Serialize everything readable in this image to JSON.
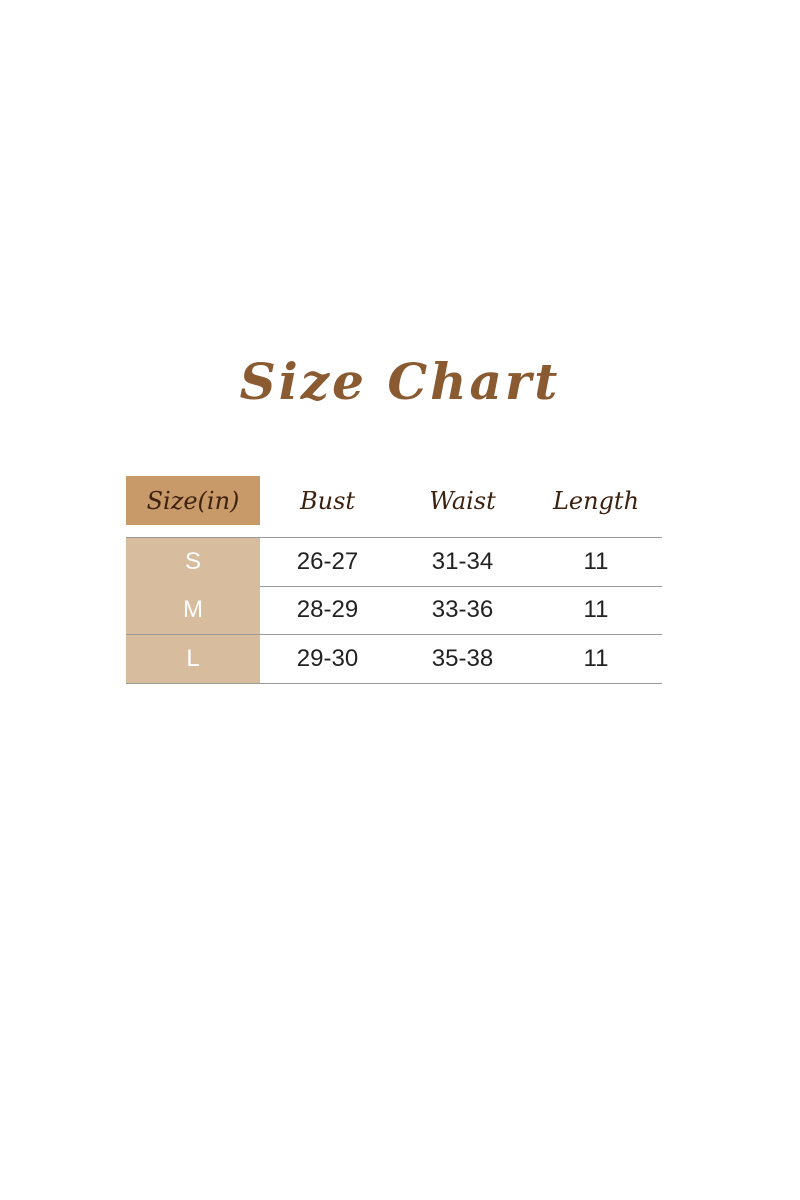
{
  "title": "Size Chart",
  "colors": {
    "title": "#8a5a30",
    "header_size_bg": "#c89a6a",
    "size_cell_bg": "#d8bc9e",
    "header_text": "#3d220f"
  },
  "table": {
    "headers": [
      "Size(in)",
      "Bust",
      "Waist",
      "Length"
    ],
    "rows": [
      [
        "S",
        "26-27",
        "31-34",
        "11"
      ],
      [
        "M",
        "28-29",
        "33-36",
        "11"
      ],
      [
        "L",
        "29-30",
        "35-38",
        "11"
      ]
    ]
  }
}
